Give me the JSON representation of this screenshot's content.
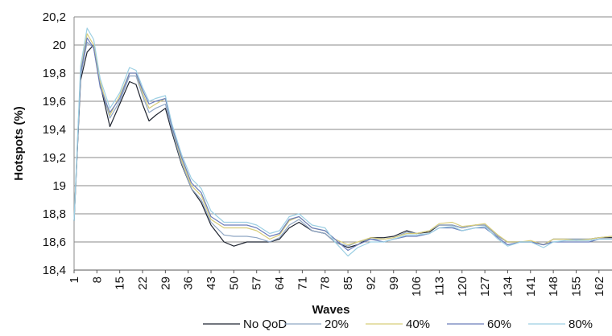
{
  "chart_data": {
    "type": "line",
    "xlabel": "Waves",
    "ylabel": "Hotspots (%)",
    "ylim": [
      18.4,
      20.2
    ],
    "y_ticks": [
      "18,4",
      "18,6",
      "18,8",
      "19",
      "19,2",
      "19,4",
      "19,6",
      "19,8",
      "20",
      "20,2"
    ],
    "x_ticks": [
      "1",
      "8",
      "15",
      "22",
      "29",
      "36",
      "43",
      "50",
      "57",
      "64",
      "71",
      "78",
      "85",
      "92",
      "99",
      "106",
      "113",
      "120",
      "127",
      "134",
      "141",
      "148",
      "155",
      "162"
    ],
    "grid": "horizontal",
    "legend": "bottom",
    "x": [
      1,
      3,
      5,
      7,
      9,
      12,
      15,
      18,
      20,
      22,
      24,
      26,
      29,
      31,
      34,
      37,
      40,
      43,
      47,
      50,
      54,
      57,
      61,
      64,
      67,
      70,
      74,
      78,
      81,
      85,
      88,
      92,
      96,
      99,
      103,
      106,
      110,
      113,
      117,
      120,
      124,
      127,
      131,
      134,
      138,
      141,
      145,
      148,
      152,
      155,
      159,
      162,
      166
    ],
    "series": [
      {
        "name": "No QoD",
        "color": "#1f2430",
        "values": [
          18.75,
          19.75,
          19.95,
          20.0,
          19.72,
          19.42,
          19.58,
          19.74,
          19.72,
          19.58,
          19.46,
          19.5,
          19.55,
          19.38,
          19.15,
          18.98,
          18.88,
          18.72,
          18.6,
          18.57,
          18.6,
          18.6,
          18.6,
          18.62,
          18.7,
          18.74,
          18.68,
          18.66,
          18.6,
          18.56,
          18.58,
          18.63,
          18.63,
          18.64,
          18.68,
          18.66,
          18.67,
          18.72,
          18.72,
          18.7,
          18.72,
          18.72,
          18.64,
          18.6,
          18.6,
          18.6,
          18.58,
          18.62,
          18.62,
          18.62,
          18.62,
          18.63,
          18.63
        ]
      },
      {
        "name": "20%",
        "color": "#8fa6c4",
        "values": [
          18.75,
          19.78,
          20.02,
          19.98,
          19.72,
          19.48,
          19.6,
          19.78,
          19.78,
          19.64,
          19.52,
          19.55,
          19.58,
          19.4,
          19.16,
          18.98,
          18.9,
          18.74,
          18.65,
          18.64,
          18.64,
          18.63,
          18.6,
          18.63,
          18.72,
          18.76,
          18.68,
          18.66,
          18.6,
          18.57,
          18.6,
          18.62,
          18.62,
          18.63,
          18.67,
          18.66,
          18.68,
          18.72,
          18.72,
          18.7,
          18.72,
          18.72,
          18.64,
          18.6,
          18.6,
          18.6,
          18.58,
          18.62,
          18.62,
          18.62,
          18.62,
          18.63,
          18.64
        ]
      },
      {
        "name": "40%",
        "color": "#d8cd7a",
        "values": [
          18.75,
          19.82,
          20.08,
          20.0,
          19.74,
          19.5,
          19.64,
          19.8,
          19.8,
          19.66,
          19.55,
          19.58,
          19.62,
          19.42,
          19.18,
          19.0,
          18.93,
          18.76,
          18.7,
          18.7,
          18.7,
          18.68,
          18.62,
          18.65,
          18.75,
          18.78,
          18.7,
          18.68,
          18.62,
          18.58,
          18.6,
          18.63,
          18.62,
          18.63,
          18.66,
          18.66,
          18.68,
          18.73,
          18.74,
          18.71,
          18.72,
          18.73,
          18.65,
          18.6,
          18.6,
          18.61,
          18.58,
          18.62,
          18.62,
          18.61,
          18.62,
          18.63,
          18.64
        ]
      },
      {
        "name": "60%",
        "color": "#6b7dba",
        "values": [
          18.75,
          19.8,
          20.05,
          19.98,
          19.7,
          19.52,
          19.62,
          19.8,
          19.8,
          19.68,
          19.58,
          19.6,
          19.62,
          19.42,
          19.2,
          19.02,
          18.95,
          18.78,
          18.72,
          18.72,
          18.72,
          18.7,
          18.64,
          18.66,
          18.76,
          18.78,
          18.7,
          18.68,
          18.62,
          18.54,
          18.58,
          18.62,
          18.6,
          18.62,
          18.64,
          18.64,
          18.66,
          18.7,
          18.7,
          18.68,
          18.7,
          18.7,
          18.63,
          18.58,
          18.6,
          18.6,
          18.58,
          18.6,
          18.6,
          18.6,
          18.6,
          18.62,
          18.62
        ]
      },
      {
        "name": "80%",
        "color": "#9ccfe3",
        "values": [
          18.75,
          19.85,
          20.12,
          20.04,
          19.76,
          19.55,
          19.66,
          19.84,
          19.82,
          19.7,
          19.6,
          19.62,
          19.64,
          19.44,
          19.22,
          19.05,
          18.98,
          18.82,
          18.74,
          18.74,
          18.74,
          18.72,
          18.66,
          18.68,
          18.78,
          18.8,
          18.72,
          18.7,
          18.6,
          18.5,
          18.56,
          18.6,
          18.6,
          18.62,
          18.65,
          18.65,
          18.66,
          18.7,
          18.71,
          18.68,
          18.7,
          18.71,
          18.62,
          18.57,
          18.6,
          18.6,
          18.56,
          18.6,
          18.61,
          18.61,
          18.61,
          18.62,
          18.62
        ]
      }
    ]
  }
}
